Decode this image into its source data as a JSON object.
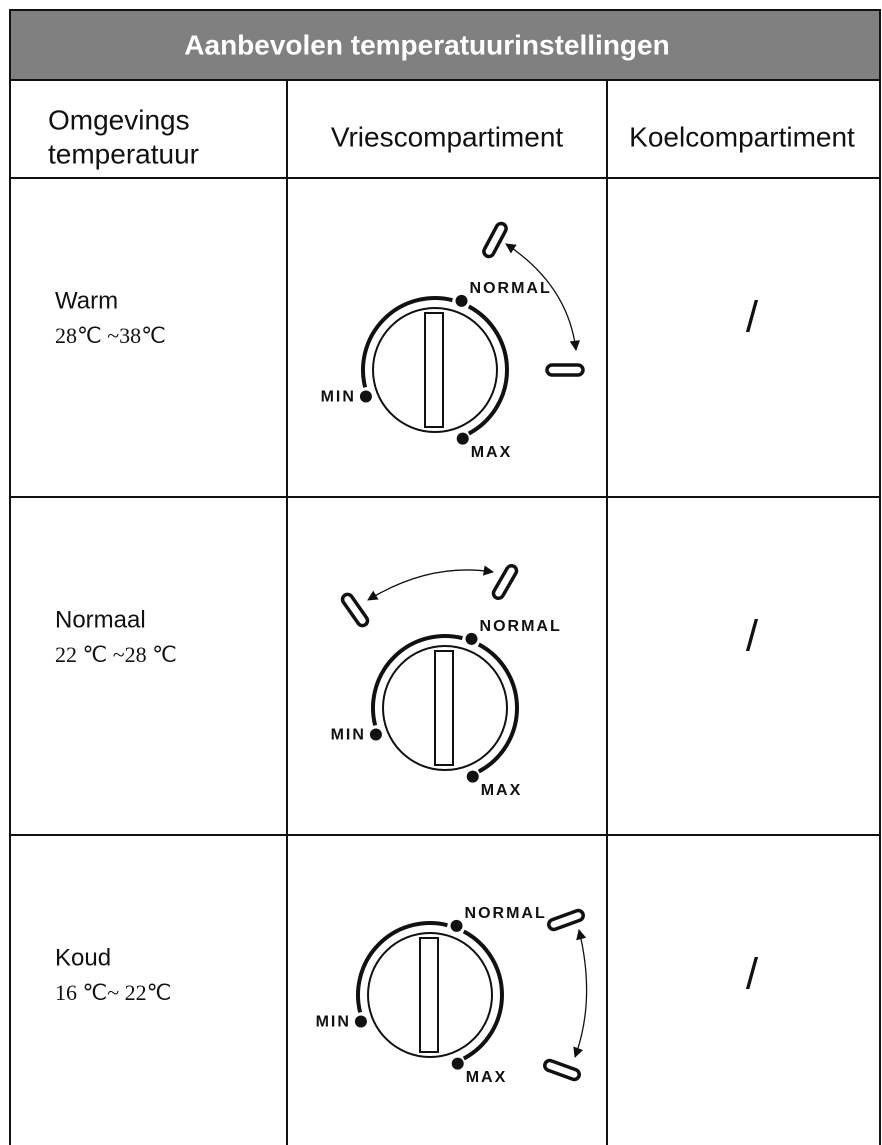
{
  "title": "Aanbevolen temperatuurinstellingen",
  "table": {
    "headers": [
      [
        "Omgevings",
        "temperatuur"
      ],
      "Vriescompartiment",
      "Koelcompartiment"
    ],
    "rows": [
      {
        "condition": "Warm",
        "range": "28℃ ~38℃",
        "dial": {
          "min": "MIN",
          "normal": "NORMAL",
          "max": "MAX"
        },
        "fridge": "/"
      },
      {
        "condition": "Normaal",
        "range": "22 ℃ ~28 ℃",
        "dial": {
          "min": "MIN",
          "normal": "NORMAL",
          "max": "MAX"
        },
        "fridge": "/"
      },
      {
        "condition": "Koud",
        "range": "16 ℃~ 22℃",
        "dial": {
          "min": "MIN",
          "normal": "NORMAL",
          "max": "MAX"
        },
        "fridge": "/"
      }
    ]
  }
}
